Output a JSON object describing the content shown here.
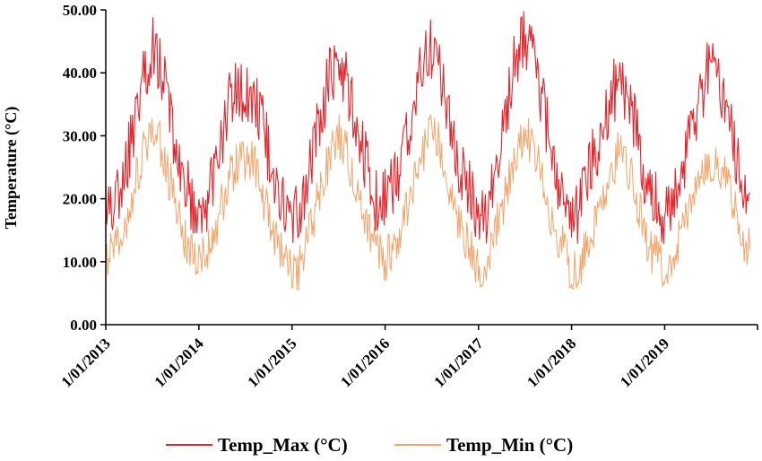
{
  "chart_data": {
    "type": "line",
    "title": "",
    "xlabel": "",
    "ylabel": "Temperature (°C)",
    "ylim": [
      0,
      50
    ],
    "y_ticks": [
      "0.00",
      "10.00",
      "20.00",
      "30.00",
      "40.00",
      "50.00"
    ],
    "x_range": [
      "2013-01-01",
      "2019-12-31"
    ],
    "x_tick_labels": [
      "1/01/2013",
      "1/01/2014",
      "1/01/2015",
      "1/01/2016",
      "1/01/2017",
      "1/01/2018",
      "1/01/2019"
    ],
    "grid": false,
    "legend_position": "bottom",
    "series": [
      {
        "name": "Temp_Max (°C)",
        "color": "#e8232a",
        "x": [
          "2013-01-01",
          "2013-02-01",
          "2013-03-01",
          "2013-04-01",
          "2013-05-01",
          "2013-06-01",
          "2013-07-01",
          "2013-08-01",
          "2013-09-01",
          "2013-10-01",
          "2013-11-01",
          "2013-12-01",
          "2014-01-01",
          "2014-02-01",
          "2014-03-01",
          "2014-04-01",
          "2014-05-01",
          "2014-06-01",
          "2014-07-01",
          "2014-08-01",
          "2014-09-01",
          "2014-10-01",
          "2014-11-01",
          "2014-12-01",
          "2015-01-01",
          "2015-02-01",
          "2015-03-01",
          "2015-04-01",
          "2015-05-01",
          "2015-06-01",
          "2015-07-01",
          "2015-08-01",
          "2015-09-01",
          "2015-10-01",
          "2015-11-01",
          "2015-12-01",
          "2016-01-01",
          "2016-02-01",
          "2016-03-01",
          "2016-04-01",
          "2016-05-01",
          "2016-06-01",
          "2016-07-01",
          "2016-08-01",
          "2016-09-01",
          "2016-10-01",
          "2016-11-01",
          "2016-12-01",
          "2017-01-01",
          "2017-02-01",
          "2017-03-01",
          "2017-04-01",
          "2017-05-01",
          "2017-06-01",
          "2017-07-01",
          "2017-08-01",
          "2017-09-01",
          "2017-10-01",
          "2017-11-01",
          "2017-12-01",
          "2018-01-01",
          "2018-02-01",
          "2018-03-01",
          "2018-04-01",
          "2018-05-01",
          "2018-06-01",
          "2018-07-01",
          "2018-08-01",
          "2018-09-01",
          "2018-10-01",
          "2018-11-01",
          "2018-12-01",
          "2019-01-01",
          "2019-02-01",
          "2019-03-01",
          "2019-04-01",
          "2019-05-01",
          "2019-06-01",
          "2019-07-01",
          "2019-08-01",
          "2019-09-01",
          "2019-10-01",
          "2019-11-01",
          "2019-12-01"
        ],
        "y": [
          19,
          17,
          22,
          27,
          34,
          40,
          44,
          42,
          36,
          29,
          23,
          20,
          16,
          19,
          24,
          29,
          35,
          38,
          36,
          35,
          34,
          27,
          22,
          19,
          16,
          18,
          23,
          29,
          35,
          40,
          42,
          39,
          34,
          29,
          23,
          19,
          20,
          22,
          25,
          31,
          36,
          42,
          44,
          41,
          34,
          29,
          23,
          21,
          16,
          18,
          24,
          29,
          37,
          43,
          45,
          43,
          37,
          31,
          23,
          20,
          16,
          18,
          23,
          27,
          31,
          36,
          38,
          36,
          33,
          26,
          21,
          19,
          16,
          19,
          24,
          28,
          33,
          38,
          42,
          39,
          35,
          29,
          23,
          21
        ]
      },
      {
        "name": "Temp_Min (°C)",
        "color": "#f4a46a",
        "x": [
          "2013-01-01",
          "2013-02-01",
          "2013-03-01",
          "2013-04-01",
          "2013-05-01",
          "2013-06-01",
          "2013-07-01",
          "2013-08-01",
          "2013-09-01",
          "2013-10-01",
          "2013-11-01",
          "2013-12-01",
          "2014-01-01",
          "2014-02-01",
          "2014-03-01",
          "2014-04-01",
          "2014-05-01",
          "2014-06-01",
          "2014-07-01",
          "2014-08-01",
          "2014-09-01",
          "2014-10-01",
          "2014-11-01",
          "2014-12-01",
          "2015-01-01",
          "2015-02-01",
          "2015-03-01",
          "2015-04-01",
          "2015-05-01",
          "2015-06-01",
          "2015-07-01",
          "2015-08-01",
          "2015-09-01",
          "2015-10-01",
          "2015-11-01",
          "2015-12-01",
          "2016-01-01",
          "2016-02-01",
          "2016-03-01",
          "2016-04-01",
          "2016-05-01",
          "2016-06-01",
          "2016-07-01",
          "2016-08-01",
          "2016-09-01",
          "2016-10-01",
          "2016-11-01",
          "2016-12-01",
          "2017-01-01",
          "2017-02-01",
          "2017-03-01",
          "2017-04-01",
          "2017-05-01",
          "2017-06-01",
          "2017-07-01",
          "2017-08-01",
          "2017-09-01",
          "2017-10-01",
          "2017-11-01",
          "2017-12-01",
          "2018-01-01",
          "2018-02-01",
          "2018-03-01",
          "2018-04-01",
          "2018-05-01",
          "2018-06-01",
          "2018-07-01",
          "2018-08-01",
          "2018-09-01",
          "2018-10-01",
          "2018-11-01",
          "2018-12-01",
          "2019-01-01",
          "2019-02-01",
          "2019-03-01",
          "2019-04-01",
          "2019-05-01",
          "2019-06-01",
          "2019-07-01",
          "2019-08-01",
          "2019-09-01",
          "2019-10-01",
          "2019-11-01",
          "2019-12-01"
        ],
        "y": [
          11,
          11,
          14,
          18,
          23,
          28,
          31,
          29,
          24,
          19,
          14,
          12,
          10,
          11,
          14,
          19,
          23,
          26,
          26,
          26,
          22,
          17,
          13,
          11,
          8,
          9,
          13,
          18,
          23,
          27,
          30,
          28,
          22,
          18,
          14,
          12,
          10,
          12,
          15,
          19,
          24,
          28,
          31,
          29,
          23,
          18,
          14,
          12,
          8,
          9,
          14,
          18,
          23,
          28,
          30,
          29,
          25,
          19,
          14,
          12,
          8,
          9,
          13,
          16,
          20,
          24,
          27,
          26,
          22,
          17,
          12,
          11,
          9,
          11,
          14,
          17,
          20,
          23,
          26,
          25,
          24,
          19,
          14,
          12
        ]
      }
    ]
  }
}
